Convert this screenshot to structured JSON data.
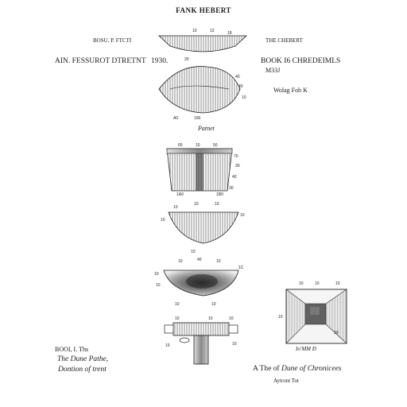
{
  "title": "FANK HEBERT",
  "left": {
    "line1": "BOSU, P. FTCTI",
    "line2": "AIN.  FESSUROT DTRETNT",
    "line3": "1930."
  },
  "right": {
    "line1": "THE CHEBERT",
    "line2": "BOOK  I6  CHREDEIMLS",
    "line3": "M33J",
    "line4": "Wolag Fob K"
  },
  "center_caption": "Patnet",
  "bottom_left": {
    "line1": "BOOI, I. Ths",
    "line2": "The Dune Pathe,",
    "line3": "Dontion of trent"
  },
  "bottom_right": {
    "caption_prefix": "A The of",
    "caption_italic": "Dune of Chronicees",
    "sub": "Aytront Tot",
    "figure_label": "Io'MM Ð"
  },
  "ref_numbers": {
    "fig1_top": [
      "10",
      "12",
      "18",
      "20"
    ],
    "fig1_side": [
      "10",
      "10"
    ],
    "fig2": [
      "40",
      "40",
      "10",
      "A0",
      "100"
    ],
    "fig3": [
      "60",
      "10",
      "50",
      "70",
      "30",
      "40",
      "30",
      "10",
      "10",
      "1A0",
      "1B0"
    ],
    "fig4": [
      "10",
      "10",
      "10",
      "10",
      "10",
      "10"
    ],
    "fig5": [
      "10",
      "40",
      "10",
      "10",
      "1C",
      "10",
      "10",
      "10",
      "10"
    ],
    "fig6": [
      "10",
      "10",
      "10",
      "10",
      "10",
      "10"
    ],
    "fig7": [
      "10",
      "10",
      "10",
      "10",
      "10"
    ]
  }
}
